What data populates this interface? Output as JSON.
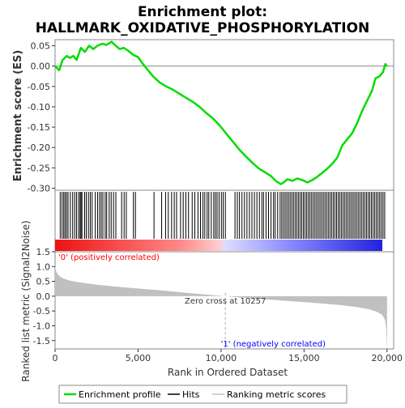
{
  "chart_data": {
    "type": "line",
    "title_line1": "Enrichment plot:",
    "title_line2": "HALLMARK_OXIDATIVE_PHOSPHORYLATION",
    "es_panel": {
      "ylabel": "Enrichment score (ES)",
      "ylim": [
        -0.305,
        0.065
      ],
      "yticks": [
        0.05,
        0.0,
        -0.05,
        -0.1,
        -0.15,
        -0.2,
        -0.25,
        -0.3
      ],
      "ytick_labels": [
        "0.05",
        "0.00",
        "-0.05",
        "-0.10",
        "-0.15",
        "-0.20",
        "-0.25",
        "-0.30"
      ],
      "line_color": "#00dd00",
      "points": [
        [
          0,
          0.0
        ],
        [
          250,
          -0.01
        ],
        [
          450,
          0.015
        ],
        [
          700,
          0.025
        ],
        [
          900,
          0.02
        ],
        [
          1100,
          0.025
        ],
        [
          1300,
          0.015
        ],
        [
          1550,
          0.045
        ],
        [
          1800,
          0.035
        ],
        [
          2050,
          0.05
        ],
        [
          2300,
          0.042
        ],
        [
          2550,
          0.05
        ],
        [
          2850,
          0.055
        ],
        [
          3100,
          0.052
        ],
        [
          3400,
          0.06
        ],
        [
          3650,
          0.05
        ],
        [
          3900,
          0.042
        ],
        [
          4150,
          0.045
        ],
        [
          4400,
          0.038
        ],
        [
          4700,
          0.028
        ],
        [
          5000,
          0.022
        ],
        [
          5300,
          0.005
        ],
        [
          5600,
          -0.01
        ],
        [
          5900,
          -0.025
        ],
        [
          6300,
          -0.04
        ],
        [
          6700,
          -0.05
        ],
        [
          7100,
          -0.058
        ],
        [
          7500,
          -0.068
        ],
        [
          7900,
          -0.078
        ],
        [
          8300,
          -0.088
        ],
        [
          8700,
          -0.1
        ],
        [
          9100,
          -0.115
        ],
        [
          9500,
          -0.128
        ],
        [
          9900,
          -0.145
        ],
        [
          10300,
          -0.165
        ],
        [
          10700,
          -0.185
        ],
        [
          11100,
          -0.205
        ],
        [
          11500,
          -0.222
        ],
        [
          11900,
          -0.238
        ],
        [
          12300,
          -0.252
        ],
        [
          12700,
          -0.262
        ],
        [
          13000,
          -0.27
        ],
        [
          13300,
          -0.282
        ],
        [
          13600,
          -0.29
        ],
        [
          13800,
          -0.285
        ],
        [
          14000,
          -0.278
        ],
        [
          14300,
          -0.282
        ],
        [
          14600,
          -0.276
        ],
        [
          14900,
          -0.28
        ],
        [
          15200,
          -0.286
        ],
        [
          15500,
          -0.28
        ],
        [
          15800,
          -0.272
        ],
        [
          16100,
          -0.262
        ],
        [
          16400,
          -0.252
        ],
        [
          16700,
          -0.24
        ],
        [
          17000,
          -0.225
        ],
        [
          17300,
          -0.195
        ],
        [
          17600,
          -0.18
        ],
        [
          17900,
          -0.165
        ],
        [
          18200,
          -0.14
        ],
        [
          18500,
          -0.11
        ],
        [
          18800,
          -0.085
        ],
        [
          19100,
          -0.06
        ],
        [
          19300,
          -0.03
        ],
        [
          19550,
          -0.025
        ],
        [
          19750,
          -0.015
        ],
        [
          19900,
          0.005
        ],
        [
          20000,
          0.0
        ]
      ]
    },
    "hits_panel": {
      "hit_positions": [
        310,
        420,
        520,
        600,
        690,
        780,
        920,
        1060,
        1180,
        1290,
        1410,
        1500,
        1560,
        1620,
        1780,
        1880,
        2010,
        2120,
        2230,
        2420,
        2560,
        2680,
        2780,
        2880,
        3020,
        3110,
        3260,
        3380,
        3520,
        3660,
        4010,
        4160,
        4290,
        4720,
        4840,
        5960,
        6420,
        6660,
        6820,
        7020,
        7180,
        7320,
        7560,
        7720,
        7880,
        8040,
        8260,
        8420,
        8610,
        8760,
        8910,
        9020,
        9160,
        9260,
        9410,
        9560,
        9660,
        9760,
        9880,
        10020,
        10130,
        10260,
        10840,
        10980,
        11110,
        11260,
        11410,
        11560,
        11710,
        11860,
        12010,
        12160,
        12310,
        12460,
        12560,
        12710,
        12860,
        13010,
        13160,
        13260,
        13410,
        13560,
        13660,
        13760,
        13860,
        13960,
        14060,
        14160,
        14260,
        14360,
        14460,
        14560,
        14660,
        14760,
        14860,
        14960,
        15060,
        15160,
        15260,
        15360,
        15460,
        15560,
        15660,
        15760,
        15860,
        15960,
        16060,
        16160,
        16260,
        16360,
        16460,
        16560,
        16660,
        16760,
        16860,
        16960,
        17060,
        17160,
        17260,
        17360,
        17460,
        17560,
        17660,
        17760,
        17860,
        17960,
        18060,
        18160,
        18260,
        18360,
        18460,
        18560,
        18660,
        18760,
        18860,
        18960,
        19060,
        19160,
        19260,
        19360,
        19460,
        19560,
        19660,
        19760,
        19860
      ],
      "gradient_colors": [
        "#ee1111",
        "#ff8888",
        "#ffcccc",
        "#ddddff",
        "#8888ff",
        "#2222dd"
      ]
    },
    "metric_panel": {
      "ylabel": "Ranked list metric (Signal2Noise)",
      "ylim": [
        -1.78,
        1.5
      ],
      "yticks": [
        1.5,
        1.0,
        0.5,
        0.0,
        -0.5,
        -1.0,
        -1.5
      ],
      "ytick_labels": [
        "1.5",
        "1.0",
        "0.5",
        "0.0",
        "-0.5",
        "-1.0",
        "-1.5"
      ],
      "fill_color": "#c0c0c0",
      "points": [
        [
          0,
          1.0
        ],
        [
          60,
          0.85
        ],
        [
          150,
          0.75
        ],
        [
          300,
          0.66
        ],
        [
          500,
          0.6
        ],
        [
          800,
          0.54
        ],
        [
          1200,
          0.49
        ],
        [
          1800,
          0.44
        ],
        [
          2500,
          0.39
        ],
        [
          3500,
          0.33
        ],
        [
          5000,
          0.26
        ],
        [
          6500,
          0.19
        ],
        [
          8000,
          0.11
        ],
        [
          9200,
          0.05
        ],
        [
          10257,
          0.0
        ],
        [
          11500,
          -0.06
        ],
        [
          13000,
          -0.12
        ],
        [
          14500,
          -0.18
        ],
        [
          16000,
          -0.24
        ],
        [
          17200,
          -0.3
        ],
        [
          18200,
          -0.37
        ],
        [
          18900,
          -0.44
        ],
        [
          19400,
          -0.53
        ],
        [
          19700,
          -0.63
        ],
        [
          19880,
          -0.8
        ],
        [
          19950,
          -1.1
        ],
        [
          19990,
          -1.78
        ],
        [
          20000,
          -1.78
        ],
        [
          20000,
          0.0
        ]
      ],
      "zero_cross_label": "Zero cross at 10257",
      "zero_cross_x": 10257,
      "pos_label": "'0' (positively correlated)",
      "neg_label": "'1' (negatively correlated)",
      "pos_color": "#ff0000",
      "neg_color": "#0000ff"
    },
    "xaxis": {
      "xlabel": "Rank in Ordered Dataset",
      "xlim": [
        0,
        20400
      ],
      "xticks": [
        0,
        5000,
        10000,
        15000,
        20000
      ],
      "xtick_labels": [
        "0",
        "5,000",
        "10,000",
        "15,000",
        "20,000"
      ]
    },
    "legend": {
      "items": [
        {
          "label": "Enrichment profile",
          "color": "#00dd00"
        },
        {
          "label": "Hits",
          "color": "#000000"
        },
        {
          "label": "Ranking metric scores",
          "color": "#c0c0c0"
        }
      ]
    }
  }
}
